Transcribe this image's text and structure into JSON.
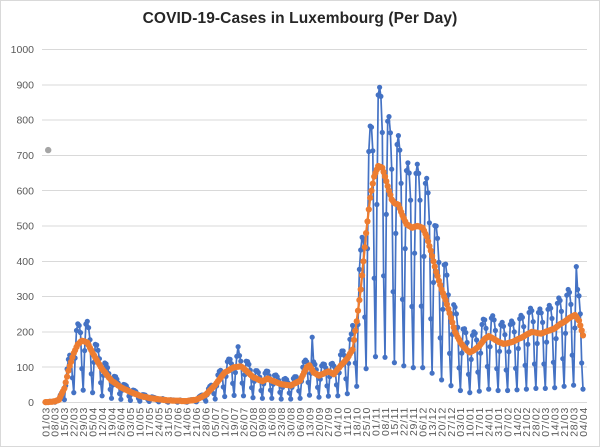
{
  "chart_data": {
    "type": "line",
    "title": "COVID-19-Cases in Luxembourg (Per Day)",
    "legend_position": "none",
    "grid": "horizontal-only",
    "y_axis": {
      "min": 0,
      "max": 1000,
      "tick_step": 100,
      "tick_values": [
        0,
        100,
        200,
        300,
        400,
        500,
        600,
        700,
        800,
        900,
        1000
      ]
    },
    "x_axis": {
      "tick_interval_days": 7,
      "tick_labels": [
        "01/03",
        "08/03",
        "15/03",
        "22/03",
        "29/03",
        "05/04",
        "12/04",
        "19/04",
        "26/04",
        "03/05",
        "10/05",
        "17/05",
        "24/05",
        "31/05",
        "07/06",
        "14/06",
        "21/06",
        "28/06",
        "05/07",
        "12/07",
        "19/07",
        "26/07",
        "02/08",
        "09/08",
        "16/08",
        "23/08",
        "30/08",
        "06/09",
        "13/09",
        "20/09",
        "27/09",
        "04/10",
        "11/10",
        "18/10",
        "25/10",
        "01/11",
        "08/11",
        "15/11",
        "22/11",
        "29/11",
        "06/12",
        "13/12",
        "20/12",
        "27/12",
        "03/01",
        "10/01",
        "17/01",
        "24/01",
        "31/01",
        "07/02",
        "14/02",
        "21/02",
        "28/02",
        "07/03",
        "14/03",
        "21/03",
        "28/03",
        "04/04"
      ]
    },
    "series": [
      {
        "name": "daily-cases",
        "style": "line-with-markers",
        "color": "#4472C4",
        "values": [
          0,
          1,
          1,
          3,
          3,
          2,
          2,
          1,
          4,
          8,
          11,
          21,
          28,
          18,
          8,
          48,
          95,
          122,
          134,
          132,
          70,
          28,
          126,
          204,
          223,
          218,
          198,
          96,
          35,
          147,
          222,
          230,
          212,
          178,
          81,
          28,
          114,
          165,
          163,
          148,
          124,
          56,
          19,
          77,
          112,
          109,
          99,
          82,
          37,
          12,
          50,
          74,
          73,
          66,
          55,
          25,
          9,
          35,
          51,
          50,
          47,
          39,
          18,
          6,
          24,
          35,
          34,
          31,
          25,
          12,
          4,
          15,
          22,
          22,
          21,
          17,
          8,
          3,
          10,
          16,
          15,
          14,
          12,
          6,
          2,
          8,
          10,
          11,
          9,
          8,
          3,
          1,
          5,
          8,
          7,
          7,
          6,
          3,
          1,
          4,
          7,
          5,
          5,
          5,
          2,
          1,
          4,
          7,
          8,
          8,
          8,
          4,
          2,
          9,
          16,
          19,
          21,
          21,
          11,
          4,
          22,
          39,
          46,
          49,
          48,
          25,
          10,
          47,
          78,
          88,
          91,
          86,
          44,
          17,
          74,
          116,
          123,
          122,
          110,
          54,
          20,
          85,
          131,
          158,
          133,
          117,
          55,
          19,
          79,
          117,
          116,
          108,
          91,
          42,
          14,
          60,
          90,
          90,
          85,
          72,
          34,
          12,
          53,
          83,
          89,
          88,
          76,
          35,
          12,
          52,
          77,
          78,
          73,
          63,
          29,
          10,
          43,
          66,
          68,
          65,
          56,
          27,
          10,
          43,
          68,
          73,
          73,
          67,
          33,
          12,
          60,
          100,
          115,
          120,
          115,
          57,
          21,
          83,
          185,
          115,
          108,
          93,
          43,
          15,
          66,
          104,
          109,
          108,
          98,
          47,
          18,
          73,
          109,
          111,
          104,
          98,
          50,
          19,
          84,
          135,
          146,
          146,
          133,
          67,
          25,
          111,
          179,
          194,
          218,
          204,
          112,
          46,
          221,
          377,
          432,
          468,
          460,
          242,
          96,
          436,
          711,
          783,
          780,
          713,
          352,
          130,
          561,
          871,
          893,
          867,
          765,
          359,
          128,
          533,
          797,
          810,
          764,
          661,
          314,
          113,
          479,
          731,
          756,
          715,
          621,
          292,
          104,
          436,
          657,
          679,
          650,
          573,
          272,
          99,
          423,
          649,
          675,
          649,
          573,
          273,
          99,
          414,
          621,
          635,
          594,
          509,
          237,
          83,
          340,
          501,
          500,
          465,
          397,
          183,
          64,
          264,
          390,
          392,
          361,
          305,
          139,
          48,
          193,
          277,
          270,
          251,
          213,
          98,
          34,
          140,
          208,
          209,
          198,
          170,
          80,
          28,
          122,
          190,
          200,
          196,
          177,
          86,
          32,
          140,
          221,
          236,
          234,
          210,
          102,
          38,
          158,
          239,
          246,
          234,
          204,
          96,
          34,
          145,
          220,
          227,
          216,
          192,
          92,
          34,
          144,
          221,
          231,
          224,
          200,
          97,
          36,
          153,
          237,
          247,
          241,
          215,
          105,
          38,
          165,
          255,
          267,
          260,
          229,
          109,
          40,
          167,
          255,
          265,
          254,
          227,
          109,
          40,
          171,
          264,
          275,
          267,
          238,
          114,
          42,
          181,
          281,
          296,
          289,
          258,
          124,
          46,
          196,
          304,
          320,
          312,
          278,
          134,
          49,
          211,
          385,
          320,
          302,
          251,
          112,
          38
        ]
      },
      {
        "name": "7-day-average",
        "style": "line-with-markers",
        "color": "#ED7D31",
        "values": [
          1,
          1,
          1,
          2,
          2,
          2,
          3,
          3,
          5,
          6,
          8,
          16,
          24,
          32,
          40,
          57,
          73,
          90,
          103,
          115,
          128,
          140,
          148,
          157,
          165,
          168,
          172,
          175,
          174,
          173,
          171,
          170,
          163,
          155,
          148,
          140,
          134,
          127,
          121,
          114,
          108,
          101,
          95,
          90,
          86,
          81,
          76,
          71,
          67,
          62,
          59,
          57,
          54,
          51,
          48,
          46,
          43,
          41,
          39,
          37,
          36,
          34,
          32,
          30,
          28,
          27,
          25,
          24,
          22,
          21,
          19,
          18,
          17,
          16,
          16,
          15,
          14,
          13,
          12,
          12,
          11,
          11,
          10,
          10,
          9,
          9,
          8,
          8,
          7,
          7,
          6,
          6,
          6,
          6,
          5,
          5,
          5,
          5,
          5,
          5,
          5,
          4,
          4,
          4,
          4,
          4,
          5,
          5,
          6,
          6,
          7,
          7,
          8,
          10,
          12,
          14,
          16,
          18,
          20,
          22,
          26,
          30,
          34,
          38,
          42,
          46,
          50,
          55,
          60,
          65,
          70,
          75,
          80,
          85,
          87,
          89,
          91,
          94,
          96,
          98,
          100,
          100,
          101,
          101,
          102,
          102,
          100,
          97,
          93,
          90,
          86,
          83,
          79,
          76,
          72,
          70,
          69,
          67,
          65,
          63,
          62,
          60,
          62,
          64,
          66,
          68,
          66,
          64,
          62,
          61,
          59,
          58,
          56,
          55,
          53,
          52,
          51,
          51,
          50,
          50,
          49,
          49,
          48,
          50,
          52,
          54,
          56,
          58,
          60,
          62,
          70,
          77,
          85,
          92,
          100,
          103,
          105,
          98,
          92,
          85,
          83,
          81,
          78,
          76,
          78,
          80,
          81,
          83,
          85,
          86,
          88,
          86,
          84,
          82,
          80,
          85,
          90,
          95,
          99,
          104,
          108,
          112,
          116,
          121,
          125,
          131,
          138,
          144,
          150,
          177,
          203,
          230,
          260,
          290,
          320,
          360,
          400,
          440,
          480,
          513,
          547,
          580,
          600,
          620,
          640,
          650,
          660,
          670,
          668,
          667,
          665,
          653,
          640,
          627,
          613,
          600,
          588,
          575,
          570,
          565,
          563,
          562,
          560,
          550,
          540,
          530,
          522,
          513,
          505,
          503,
          500,
          498,
          495,
          496,
          498,
          499,
          500,
          499,
          498,
          496,
          495,
          487,
          478,
          470,
          457,
          443,
          430,
          415,
          400,
          385,
          370,
          358,
          345,
          333,
          320,
          310,
          300,
          290,
          278,
          265,
          253,
          240,
          227,
          213,
          200,
          193,
          185,
          178,
          170,
          165,
          160,
          155,
          152,
          148,
          145,
          142,
          144,
          146,
          148,
          151,
          154,
          157,
          160,
          165,
          170,
          175,
          180,
          183,
          185,
          188,
          186,
          184,
          182,
          180,
          177,
          175,
          172,
          171,
          169,
          168,
          166,
          167,
          167,
          168,
          169,
          170,
          171,
          172,
          174,
          176,
          178,
          180,
          182,
          183,
          185,
          187,
          190,
          192,
          194,
          196,
          198,
          200,
          199,
          199,
          198,
          197,
          196,
          196,
          195,
          197,
          198,
          200,
          201,
          203,
          204,
          205,
          207,
          208,
          210,
          213,
          216,
          219,
          222,
          224,
          226,
          228,
          231,
          234,
          237,
          240,
          242,
          244,
          246,
          248,
          243,
          237,
          232,
          218,
          204,
          190
        ]
      }
    ],
    "stray_points": [
      {
        "name": "gray-point",
        "color": "#A5A5A5",
        "x_index": 2,
        "value": 715
      }
    ]
  },
  "style": {
    "background": "#FFFFFF",
    "border": "#D9D9D9",
    "gridline": "#D9D9D9",
    "axis_label": "#595959",
    "title_color": "#262626"
  }
}
